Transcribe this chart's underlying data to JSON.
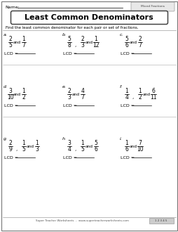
{
  "title": "Least Common Denominators",
  "subtitle": "Find the least common denominator for each pair or set of fractions.",
  "name_label": "Name:",
  "corner_label": "Mixed Fractions",
  "bg_color": "#ffffff",
  "problems": [
    {
      "label": "a.",
      "fractions": [
        [
          "2",
          "5"
        ],
        [
          "1",
          "7"
        ]
      ],
      "separators": [
        "and"
      ]
    },
    {
      "label": "b.",
      "fractions": [
        [
          "5",
          "8"
        ],
        [
          "2",
          "3"
        ],
        [
          "1",
          "12"
        ]
      ],
      "separators": [
        ",",
        "and"
      ]
    },
    {
      "label": "c.",
      "fractions": [
        [
          "5",
          "6"
        ],
        [
          "2",
          "7"
        ]
      ],
      "separators": [
        "and"
      ]
    },
    {
      "label": "d.",
      "fractions": [
        [
          "3",
          "10"
        ],
        [
          "1",
          "2"
        ]
      ],
      "separators": [
        "and"
      ]
    },
    {
      "label": "e.",
      "fractions": [
        [
          "2",
          "3"
        ],
        [
          "4",
          "7"
        ]
      ],
      "separators": [
        "and"
      ]
    },
    {
      "label": "f.",
      "fractions": [
        [
          "1",
          "4"
        ],
        [
          "1",
          "2"
        ],
        [
          "6",
          "11"
        ]
      ],
      "separators": [
        ",",
        "and"
      ]
    },
    {
      "label": "g.",
      "fractions": [
        [
          "2",
          "9"
        ],
        [
          "1",
          "5"
        ],
        [
          "1",
          "3"
        ]
      ],
      "separators": [
        ",",
        "and"
      ]
    },
    {
      "label": "h.",
      "fractions": [
        [
          "3",
          "4"
        ],
        [
          "1",
          "5"
        ],
        [
          "5",
          "6"
        ]
      ],
      "separators": [
        ",",
        "and"
      ]
    },
    {
      "label": "i.",
      "fractions": [
        [
          "1",
          "6"
        ],
        [
          "7",
          "10"
        ]
      ],
      "separators": [
        "and"
      ]
    }
  ],
  "footer": "Super Teacher Worksheets  -  www.superteacherworksheets.com",
  "footer2": "1 2 3 4 5"
}
